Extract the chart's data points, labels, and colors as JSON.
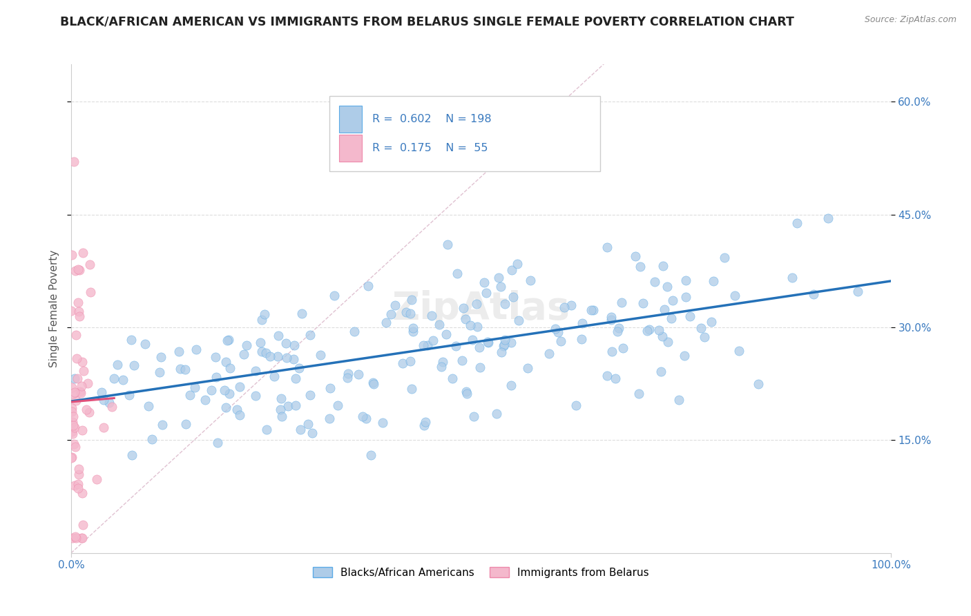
{
  "title": "BLACK/AFRICAN AMERICAN VS IMMIGRANTS FROM BELARUS SINGLE FEMALE POVERTY CORRELATION CHART",
  "source": "Source: ZipAtlas.com",
  "ylabel": "Single Female Poverty",
  "xlim": [
    0,
    1.0
  ],
  "ylim": [
    0,
    0.65
  ],
  "yticks": [
    0.15,
    0.3,
    0.45,
    0.6
  ],
  "ytick_labels": [
    "15.0%",
    "30.0%",
    "45.0%",
    "60.0%"
  ],
  "xtick_labels": [
    "0.0%",
    "100.0%"
  ],
  "blue_R": 0.602,
  "blue_N": 198,
  "pink_R": 0.175,
  "pink_N": 55,
  "blue_color": "#aecce8",
  "blue_edge_color": "#5baae7",
  "blue_line_color": "#2471b8",
  "pink_color": "#f4b8cc",
  "pink_edge_color": "#ee88aa",
  "pink_line_color": "#e0507a",
  "diagonal_color": "#ddbbcc",
  "tick_label_color": "#3a7abf",
  "watermark": "ZipAtlas",
  "background_color": "#ffffff",
  "legend_label_blue": "Blacks/African Americans",
  "legend_label_pink": "Immigrants from Belarus",
  "legend_R_N_color": "#3a7abf",
  "grid_color": "#dddddd",
  "source_color": "#888888",
  "ylabel_color": "#555555",
  "title_color": "#222222"
}
